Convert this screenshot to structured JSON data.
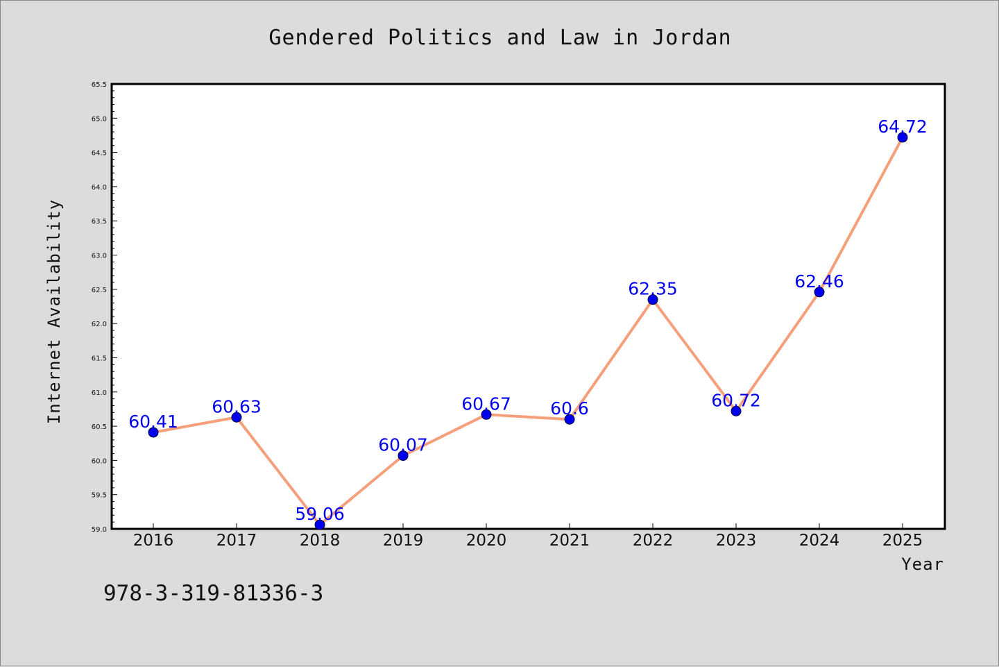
{
  "chart_data": {
    "type": "line",
    "title": "Gendered Politics and Law in Jordan",
    "xlabel": "Year",
    "ylabel": "Internet Availability",
    "categories": [
      "2016",
      "2017",
      "2018",
      "2019",
      "2020",
      "2021",
      "2022",
      "2023",
      "2024",
      "2025"
    ],
    "series": [
      {
        "values": [
          60.41,
          60.63,
          59.06,
          60.07,
          60.67,
          60.6,
          62.35,
          60.72,
          62.46,
          64.72
        ],
        "labels": [
          "60.41",
          "60.63",
          "59.06",
          "60.07",
          "60.67",
          "60.6",
          "62.35",
          "60.72",
          "62.46",
          "64.72"
        ]
      }
    ],
    "ylim": [
      59.0,
      65.5
    ],
    "yticks": [
      "59.0",
      "59.5",
      "60.0",
      "60.5",
      "61.0",
      "61.5",
      "62.0",
      "62.5",
      "63.0",
      "63.5",
      "64.0",
      "64.5",
      "65.0",
      "65.5"
    ],
    "grid": false,
    "legend": "none",
    "colors": {
      "line": "#f5a07a",
      "marker": "#0000ee",
      "label": "#0000ee",
      "plot_background": "#ffffff",
      "page_background": "#dcdcdc"
    }
  },
  "footer": {
    "isbn": "978-3-319-81336-3"
  }
}
